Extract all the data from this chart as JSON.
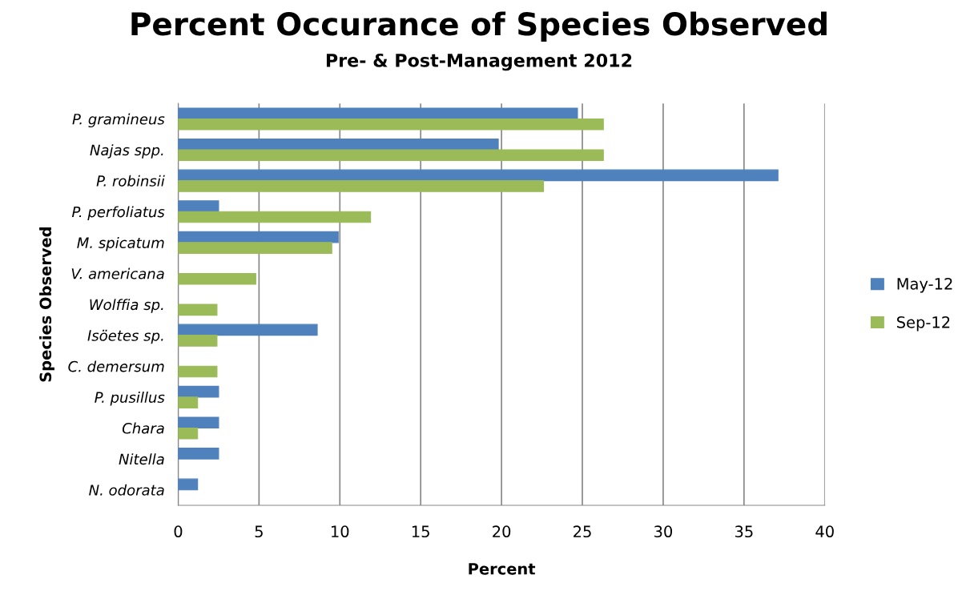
{
  "chart_data": {
    "type": "bar",
    "orientation": "horizontal",
    "title": "Percent Occurance of Species Observed",
    "subtitle": "Pre- & Post-Management 2012",
    "xlabel": "Percent",
    "ylabel": "Species Observed",
    "categories": [
      "P. gramineus",
      "Najas spp.",
      "P. robinsii",
      "P. perfoliatus",
      "M. spicatum",
      "V. americana",
      "Wolffia sp.",
      "Isöetes sp.",
      "C. demersum",
      "P. pusillus",
      "Chara",
      "Nitella",
      "N. odorata"
    ],
    "series": [
      {
        "name": "May-12",
        "color": "#4f81bd",
        "values": [
          24.7,
          19.8,
          37.1,
          2.5,
          9.9,
          null,
          null,
          8.6,
          null,
          2.5,
          2.5,
          2.5,
          1.2
        ]
      },
      {
        "name": "Sep-12",
        "color": "#9bbb59",
        "values": [
          26.3,
          26.3,
          22.6,
          11.9,
          9.5,
          4.8,
          2.4,
          2.4,
          2.4,
          1.2,
          1.2,
          null,
          null
        ]
      }
    ],
    "xlim": [
      0,
      40
    ],
    "xticks": [
      0,
      5,
      10,
      15,
      20,
      25,
      30,
      35,
      40
    ],
    "grid": "x",
    "legend": "right"
  }
}
